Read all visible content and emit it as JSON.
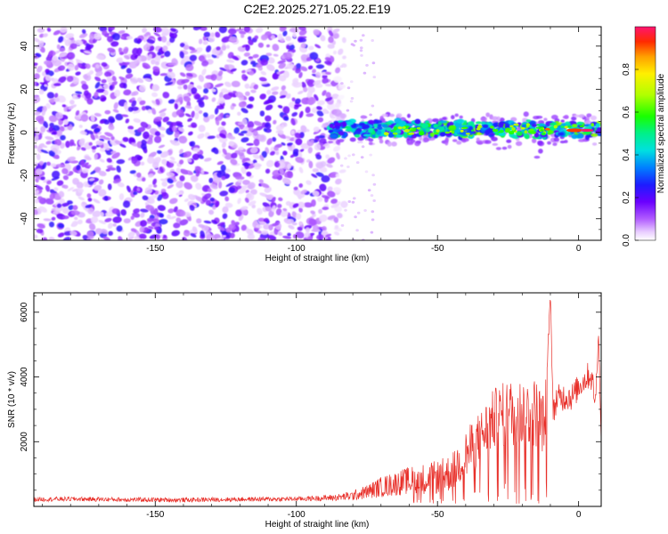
{
  "title": "C2E2.2025.271.05.22.E19",
  "chart_data": [
    {
      "type": "heatmap",
      "xlabel": "Height of straight line (km)",
      "ylabel": "Frequency (Hz)",
      "xlim": [
        -193,
        8
      ],
      "ylim": [
        -50,
        49
      ],
      "xticks": [
        -150,
        -100,
        -50,
        0
      ],
      "yticks": [
        -40,
        -20,
        0,
        20,
        40
      ],
      "colorbar": {
        "label": "Normalized spectral amplitude",
        "range": [
          0,
          1
        ],
        "ticks": [
          "0.0",
          "0.2",
          "0.4",
          "0.6",
          "0.8"
        ]
      },
      "description_values": {
        "noise_region_x": [
          -193,
          -83
        ],
        "signal_band_x": [
          -88,
          8
        ],
        "signal_band_center_freq_hz": 1.5,
        "signal_band_halfwidth_hz": 4,
        "peak_amplitude_x": [
          -8,
          3
        ],
        "peak_amplitude": 1.0
      }
    },
    {
      "type": "line",
      "xlabel": "Height of straight line (km)",
      "ylabel": "SNR (10 * v/v)",
      "xlim": [
        -193,
        8
      ],
      "ylim": [
        0,
        6600
      ],
      "xticks": [
        -150,
        -100,
        -50,
        0
      ],
      "yticks": [
        2000,
        4000,
        6000
      ],
      "series": [
        {
          "color": "#e8302a",
          "x": [
            -193,
            -180,
            -160,
            -140,
            -120,
            -100,
            -90,
            -85,
            -80,
            -75,
            -70,
            -65,
            -60,
            -55,
            -50,
            -45,
            -40,
            -35,
            -30,
            -25,
            -20,
            -15,
            -12,
            -10,
            -9,
            -8,
            -5,
            -2,
            0,
            2,
            4,
            5,
            6,
            7,
            8
          ],
          "values": [
            220,
            230,
            210,
            200,
            220,
            230,
            260,
            280,
            330,
            450,
            600,
            700,
            800,
            850,
            900,
            1050,
            1600,
            2100,
            2700,
            2900,
            2900,
            2900,
            2500,
            6600,
            2800,
            3300,
            3400,
            3400,
            3700,
            3900,
            4100,
            3800,
            3200,
            5500,
            2000
          ],
          "noise": [
            70,
            70,
            70,
            70,
            70,
            70,
            90,
            110,
            150,
            220,
            320,
            380,
            430,
            480,
            520,
            600,
            750,
            850,
            950,
            1050,
            1100,
            1100,
            900,
            0,
            450,
            450,
            450,
            450,
            400,
            400,
            450,
            400,
            400,
            300,
            0
          ]
        }
      ]
    }
  ]
}
